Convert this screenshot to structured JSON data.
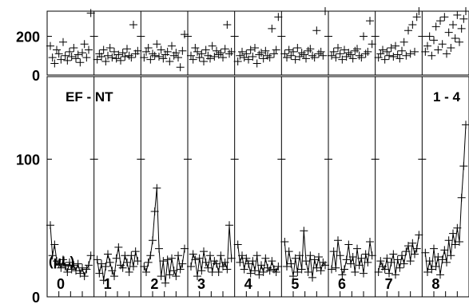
{
  "chart_data": [
    {
      "type": "scatter",
      "panel": "top",
      "ylim": [
        0,
        330
      ],
      "yticks": [
        {
          "value": 0,
          "label": "0"
        },
        {
          "value": 200,
          "label": "200"
        }
      ],
      "groups": [
        {
          "label": "0",
          "y_values": [
            150,
            90,
            60,
            130,
            110,
            80,
            170,
            100,
            75,
            120,
            95,
            140,
            85,
            105,
            65,
            115,
            160,
            90,
            130,
            320
          ]
        },
        {
          "label": "1",
          "y_values": [
            80,
            110,
            95,
            130,
            70,
            100,
            140,
            90,
            120,
            85,
            105,
            75,
            115,
            95,
            135,
            100,
            90,
            260,
            110,
            125
          ]
        },
        {
          "label": "2",
          "y_values": [
            90,
            120,
            140,
            80,
            110,
            100,
            160,
            95,
            130,
            85,
            105,
            120,
            70,
            150,
            100,
            115,
            90,
            40,
            125,
            210
          ]
        },
        {
          "label": "3",
          "y_values": [
            100,
            80,
            140,
            120,
            90,
            110,
            70,
            130,
            100,
            85,
            150,
            95,
            125,
            105,
            115,
            90,
            135,
            260,
            110,
            120
          ]
        },
        {
          "label": "4",
          "y_values": [
            70,
            100,
            120,
            90,
            110,
            80,
            130,
            95,
            140,
            60,
            105,
            115,
            85,
            125,
            100,
            90,
            240,
            110,
            130,
            300
          ]
        },
        {
          "label": "5",
          "y_values": [
            110,
            90,
            130,
            100,
            120,
            80,
            140,
            95,
            115,
            105,
            85,
            125,
            135,
            100,
            90,
            230,
            110,
            120,
            100,
            330
          ]
        },
        {
          "label": "6",
          "y_values": [
            100,
            120,
            90,
            140,
            110,
            80,
            130,
            95,
            115,
            105,
            85,
            125,
            135,
            100,
            90,
            200,
            110,
            120,
            280,
            160
          ]
        },
        {
          "label": "7",
          "y_values": [
            90,
            110,
            130,
            80,
            120,
            100,
            140,
            95,
            150,
            105,
            85,
            125,
            170,
            100,
            230,
            110,
            260,
            120,
            300,
            330
          ]
        },
        {
          "label": "8",
          "y_values": [
            120,
            150,
            200,
            100,
            180,
            250,
            130,
            280,
            160,
            300,
            110,
            220,
            140,
            260,
            190,
            310,
            170,
            240,
            290,
            330
          ]
        }
      ]
    },
    {
      "type": "line",
      "panel": "bottom",
      "title_left": "EF - NT",
      "title_right": "1 - 4",
      "ylim": [
        0,
        160
      ],
      "yticks": [
        {
          "value": 0,
          "label": "0"
        },
        {
          "value": 100,
          "label": "100"
        }
      ],
      "annotation": "(μL)",
      "groups": [
        {
          "label": "0",
          "y_values": [
            52,
            30,
            38,
            26,
            24,
            21,
            27,
            22,
            18,
            25,
            20,
            23,
            19,
            24,
            17,
            21,
            15,
            20,
            23,
            30
          ]
        },
        {
          "label": "1",
          "y_values": [
            27,
            17,
            24,
            12,
            22,
            31,
            25,
            19,
            15,
            28,
            36,
            23,
            21,
            30,
            25,
            18,
            30,
            22,
            33,
            26
          ]
        },
        {
          "label": "2",
          "y_values": [
            22,
            18,
            25,
            30,
            41,
            62,
            79,
            35,
            15,
            26,
            10,
            27,
            16,
            28,
            19,
            15,
            30,
            20,
            24,
            35
          ]
        },
        {
          "label": "3",
          "y_values": [
            22,
            31,
            27,
            15,
            28,
            19,
            33,
            25,
            21,
            30,
            18,
            26,
            24,
            18,
            30,
            22,
            25,
            20,
            52,
            28
          ]
        },
        {
          "label": "4",
          "y_values": [
            38,
            25,
            30,
            20,
            28,
            24,
            17,
            26,
            19,
            30,
            16,
            23,
            18,
            28,
            21,
            19,
            26,
            20,
            18,
            22
          ]
        },
        {
          "label": "5",
          "y_values": [
            40,
            22,
            33,
            24,
            15,
            28,
            18,
            30,
            20,
            48,
            26,
            18,
            30,
            14,
            27,
            21,
            29,
            19,
            25,
            23
          ]
        },
        {
          "label": "6",
          "y_values": [
            20,
            33,
            21,
            41,
            30,
            16,
            20,
            27,
            38,
            24,
            29,
            18,
            35,
            23,
            28,
            17,
            31,
            25,
            40,
            30
          ]
        },
        {
          "label": "7",
          "y_values": [
            18,
            26,
            22,
            20,
            28,
            17,
            25,
            31,
            16,
            27,
            21,
            30,
            24,
            33,
            37,
            26,
            39,
            31,
            35,
            45
          ]
        },
        {
          "label": "8",
          "y_values": [
            32,
            18,
            26,
            20,
            35,
            22,
            29,
            16,
            27,
            34,
            25,
            41,
            30,
            46,
            38,
            50,
            40,
            72,
            95,
            125
          ]
        }
      ]
    }
  ]
}
